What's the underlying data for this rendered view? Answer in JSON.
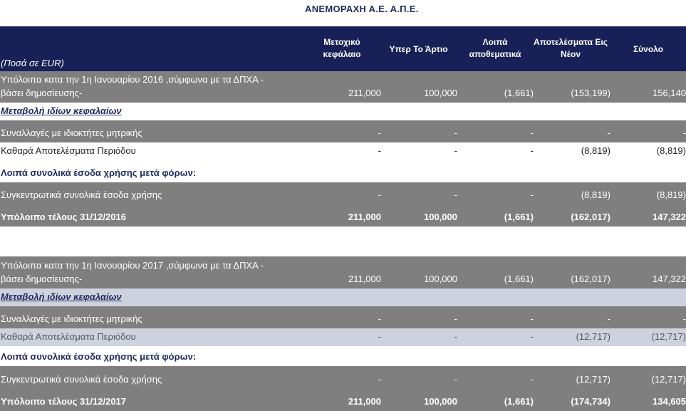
{
  "company": "ΑΝΕΜΟΡΑΧΗ Α.Ε. Α.Π.Ε.",
  "header": {
    "unit": "(Ποσά σε EUR)",
    "col1": [
      "Μετοχικό",
      "κεφάλαιο"
    ],
    "col2": "Υπερ Το Άρτιο",
    "col3": [
      "Λοιπά",
      "αποθεματικά"
    ],
    "col4": [
      "Αποτελέσματα Εις",
      "Νέον"
    ],
    "col5": "Σύνολο"
  },
  "rows": [
    {
      "label1": "Υπόλοιπα κατα την 1η Ιανουαρίου 2016 ,σύμφωνα με τα ΔΠΧΑ -",
      "label2": "βάσει δημοσίευσης-",
      "v1": "211,000",
      "v2": "100,000",
      "v3": "(1,661)",
      "v4": "(153,199)",
      "v5": "156,140"
    },
    {
      "label": "Μεταβολή ιδίων κεφαλαίων"
    },
    {
      "label": "Συναλλαγές με ιδιοκτήτες μητρικής",
      "v1": "-",
      "v2": "-",
      "v3": "-",
      "v4": "-",
      "v5": "-"
    },
    {
      "label": "Καθαρά Αποτελέσματα Περιόδου",
      "v1": "-",
      "v2": "-",
      "v3": "-",
      "v4": "(8,819)",
      "v5": "(8,819)"
    },
    {
      "label": "Λοιπά συνολικά έσοδα χρήσης μετά φόρων:"
    },
    {
      "label": "Συγκεντρωτικά συνολικά έσοδα χρήσης",
      "v1": "-",
      "v2": "-",
      "v3": "-",
      "v4": "(8,819)",
      "v5": "(8,819)"
    },
    {
      "label": "Υπόλοιπο τέλους 31/12/2016",
      "v1": "211,000",
      "v2": "100,000",
      "v3": "(1,661)",
      "v4": "(162,017)",
      "v5": "147,322"
    },
    {
      "label1": "Υπόλοιπα κατα την 1η Ιανουαρίου 2017 ,σύμφωνα με τα ΔΠΧΑ -",
      "label2": "βάσει δημοσίευσης-",
      "v1": "211,000",
      "v2": "100,000",
      "v3": "(1,661)",
      "v4": "(162,017)",
      "v5": "147,322"
    },
    {
      "label": "Μεταβολή ιδίων κεφαλαίων"
    },
    {
      "label": "Συναλλαγές με ιδιοκτήτες μητρικής",
      "v1": "-",
      "v2": "-",
      "v3": "-",
      "v4": "-",
      "v5": "-"
    },
    {
      "label": "Καθαρά Αποτελέσματα Περιόδου",
      "v1": "-",
      "v2": "-",
      "v3": "-",
      "v4": "(12,717)",
      "v5": "(12,717)"
    },
    {
      "label": "Λοιπά συνολικά έσοδα χρήσης μετά φόρων:"
    },
    {
      "label": "Συγκεντρωτικά συνολικά έσοδα χρήσης",
      "v1": "-",
      "v2": "-",
      "v3": "-",
      "v4": "(12,717)",
      "v5": "(12,717)"
    },
    {
      "label": "Υπόλοιπο τέλους 31/12/2017",
      "v1": "211,000",
      "v2": "100,000",
      "v3": "(1,661)",
      "v4": "(174,734)",
      "v5": "134,605"
    }
  ]
}
